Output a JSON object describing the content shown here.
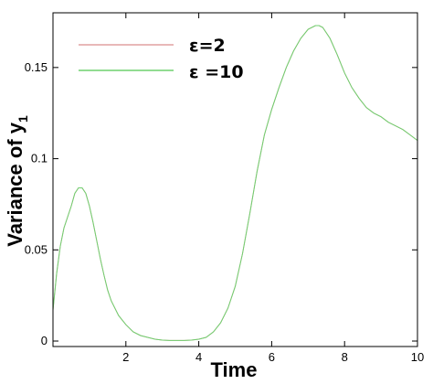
{
  "chart_data": {
    "type": "line",
    "xlabel": "Time",
    "ylabel_main": "Variance of y",
    "ylabel_subscript": "1",
    "xlim": [
      0,
      10
    ],
    "ylim": [
      -0.003,
      0.18
    ],
    "x_ticks": [
      2,
      4,
      6,
      8,
      10
    ],
    "x_tick_labels": [
      "2",
      "4",
      "6",
      "8",
      "10"
    ],
    "y_ticks": [
      0,
      0.05,
      0.1,
      0.15
    ],
    "y_tick_labels": [
      "0",
      "0.05",
      "0.1",
      "0.15"
    ],
    "grid": false,
    "legend_position": "top-left",
    "series": [
      {
        "name": "ε=2",
        "color": "#e0a0a0",
        "x": [
          0,
          0.1,
          0.2,
          0.3,
          0.4,
          0.5,
          0.6,
          0.7,
          0.8,
          0.9,
          1.0,
          1.1,
          1.2,
          1.3,
          1.4,
          1.5,
          1.6,
          1.8,
          2.0,
          2.2,
          2.4,
          2.6,
          2.8,
          3.0,
          3.2,
          3.4,
          3.6,
          3.8,
          4.0,
          4.2,
          4.4,
          4.6,
          4.8,
          5.0,
          5.2,
          5.4,
          5.6,
          5.8,
          6.0,
          6.2,
          6.4,
          6.6,
          6.8,
          7.0,
          7.2,
          7.3,
          7.4,
          7.6,
          7.8,
          8.0,
          8.2,
          8.4,
          8.6,
          8.8,
          9.0,
          9.2,
          9.4,
          9.6,
          9.8,
          10.0
        ],
        "values": [
          0.017,
          0.037,
          0.052,
          0.062,
          0.068,
          0.074,
          0.081,
          0.084,
          0.084,
          0.081,
          0.074,
          0.065,
          0.055,
          0.045,
          0.036,
          0.028,
          0.022,
          0.014,
          0.009,
          0.005,
          0.003,
          0.002,
          0.001,
          0.0005,
          0.0003,
          0.0003,
          0.0003,
          0.0005,
          0.001,
          0.002,
          0.005,
          0.01,
          0.018,
          0.03,
          0.048,
          0.07,
          0.093,
          0.113,
          0.127,
          0.139,
          0.15,
          0.159,
          0.166,
          0.171,
          0.173,
          0.173,
          0.172,
          0.166,
          0.157,
          0.147,
          0.139,
          0.133,
          0.128,
          0.125,
          0.123,
          0.12,
          0.118,
          0.116,
          0.113,
          0.11
        ]
      },
      {
        "name": "ε =10",
        "color": "#6fd06f",
        "x": [
          0,
          0.1,
          0.2,
          0.3,
          0.4,
          0.5,
          0.6,
          0.7,
          0.8,
          0.9,
          1.0,
          1.1,
          1.2,
          1.3,
          1.4,
          1.5,
          1.6,
          1.8,
          2.0,
          2.2,
          2.4,
          2.6,
          2.8,
          3.0,
          3.2,
          3.4,
          3.6,
          3.8,
          4.0,
          4.2,
          4.4,
          4.6,
          4.8,
          5.0,
          5.2,
          5.4,
          5.6,
          5.8,
          6.0,
          6.2,
          6.4,
          6.6,
          6.8,
          7.0,
          7.2,
          7.3,
          7.4,
          7.6,
          7.8,
          8.0,
          8.2,
          8.4,
          8.6,
          8.8,
          9.0,
          9.2,
          9.4,
          9.6,
          9.8,
          10.0
        ],
        "values": [
          0.017,
          0.037,
          0.052,
          0.062,
          0.068,
          0.074,
          0.081,
          0.084,
          0.084,
          0.081,
          0.074,
          0.065,
          0.055,
          0.045,
          0.036,
          0.028,
          0.022,
          0.014,
          0.009,
          0.005,
          0.003,
          0.002,
          0.001,
          0.0005,
          0.0003,
          0.0003,
          0.0003,
          0.0005,
          0.001,
          0.002,
          0.005,
          0.01,
          0.018,
          0.03,
          0.048,
          0.07,
          0.093,
          0.113,
          0.127,
          0.139,
          0.15,
          0.159,
          0.166,
          0.171,
          0.173,
          0.173,
          0.172,
          0.166,
          0.157,
          0.147,
          0.139,
          0.133,
          0.128,
          0.125,
          0.123,
          0.12,
          0.118,
          0.116,
          0.113,
          0.11
        ]
      }
    ]
  }
}
